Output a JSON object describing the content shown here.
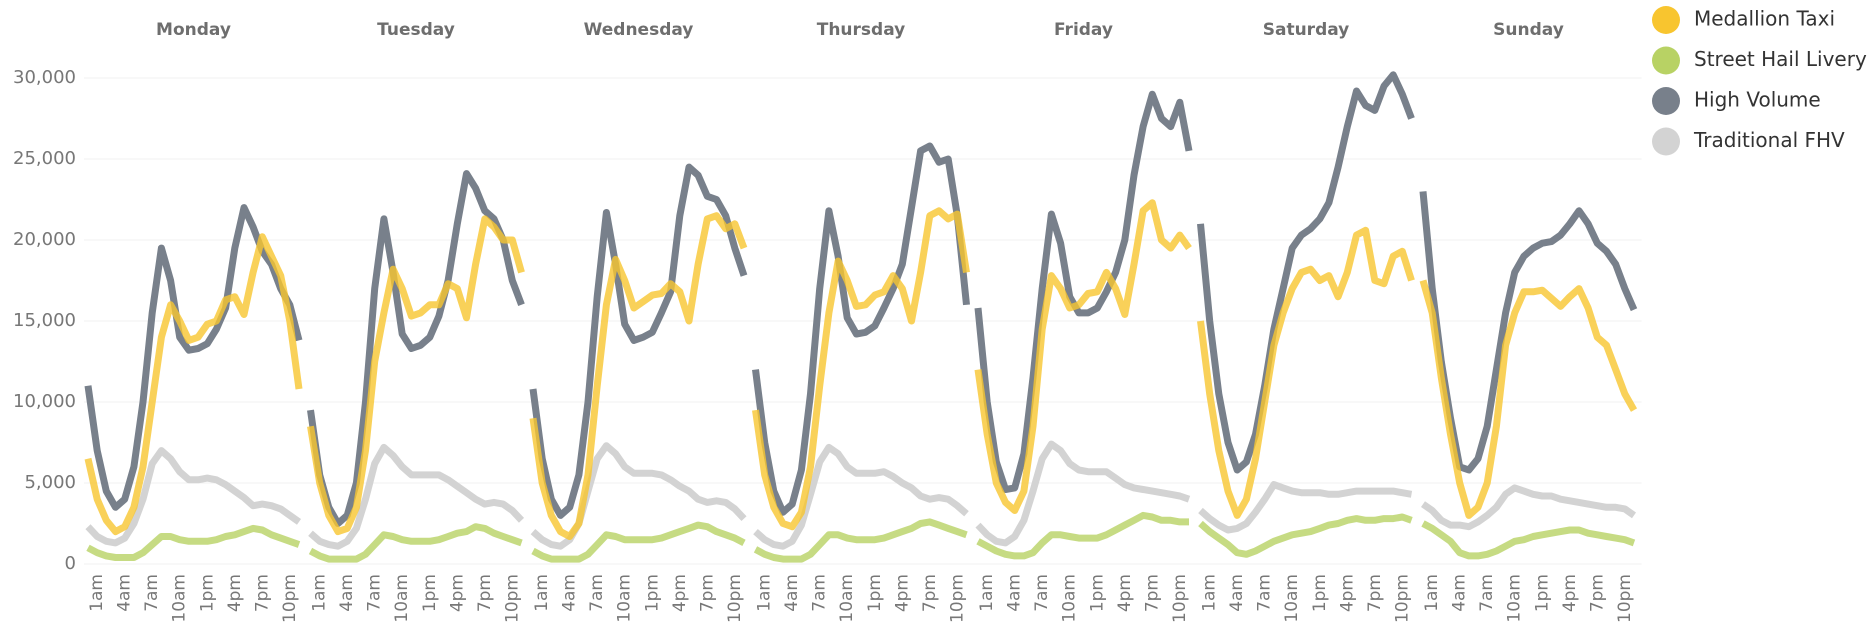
{
  "chart_data": {
    "type": "line",
    "panels": [
      "Monday",
      "Tuesday",
      "Wednesday",
      "Thursday",
      "Friday",
      "Saturday",
      "Sunday"
    ],
    "categories": [
      null,
      "1am",
      null,
      null,
      "4am",
      null,
      null,
      "7am",
      null,
      null,
      "10am",
      null,
      null,
      "1pm",
      null,
      null,
      "4pm",
      null,
      null,
      "7pm",
      null,
      null,
      "10pm",
      null
    ],
    "ylim": [
      0,
      30000
    ],
    "yticks": [
      0,
      {
        "value": 5000,
        "label": "5,000"
      },
      {
        "value": 10000,
        "label": "10,000"
      },
      {
        "value": 15000,
        "label": "15,000"
      },
      {
        "value": 20000,
        "label": "20,000"
      },
      {
        "value": 25000,
        "label": "25,000"
      },
      {
        "value": 30000,
        "label": "30,000"
      }
    ],
    "grid": true,
    "legend": "right",
    "series": [
      {
        "name": "Medallion Taxi",
        "color": "#f8c52f",
        "values": [
          [
            6500,
            4000,
            2700,
            2000,
            2300,
            3500,
            6000,
            10000,
            14000,
            16000,
            15000,
            13800,
            14000,
            14800,
            15000,
            16300,
            16500,
            15400,
            18000,
            20200,
            19000,
            17800,
            15000,
            10800
          ],
          [
            8500,
            5000,
            3000,
            2000,
            2200,
            3500,
            7000,
            12500,
            15500,
            18200,
            17000,
            15300,
            15500,
            16000,
            16000,
            17300,
            17000,
            15200,
            18500,
            21300,
            20800,
            20000,
            20000,
            18000
          ],
          [
            9000,
            5000,
            3000,
            2000,
            1700,
            2500,
            5500,
            11000,
            16000,
            18800,
            17500,
            15800,
            16200,
            16600,
            16700,
            17300,
            16800,
            15000,
            18500,
            21300,
            21500,
            20700,
            21000,
            19500
          ],
          [
            9500,
            5500,
            3500,
            2500,
            2300,
            3200,
            6000,
            11000,
            15500,
            18700,
            17500,
            15900,
            16000,
            16600,
            16800,
            17800,
            17000,
            15000,
            18000,
            21500,
            21800,
            21300,
            21600,
            18000
          ],
          [
            12000,
            8000,
            5000,
            3800,
            3300,
            4500,
            8500,
            14500,
            17800,
            17000,
            15800,
            16000,
            16700,
            16800,
            18000,
            17000,
            15400,
            18500,
            21800,
            22300,
            20000,
            19500,
            20300,
            19500
          ],
          [
            15000,
            10500,
            7000,
            4500,
            3000,
            4000,
            6500,
            10000,
            13500,
            15500,
            17000,
            18000,
            18200,
            17500,
            17800,
            16500,
            18000,
            20300,
            20600,
            17500,
            17300,
            19000,
            19300,
            17500
          ],
          [
            17500,
            15500,
            11500,
            8000,
            5000,
            3000,
            3500,
            5000,
            8500,
            13500,
            15500,
            16800,
            16800,
            16900,
            16400,
            15900,
            16500,
            17000,
            15800,
            14000,
            13500,
            12000,
            10500,
            9500
          ]
        ]
      },
      {
        "name": "Street Hail Livery",
        "color": "#b8d264",
        "values": [
          [
            1000,
            700,
            500,
            400,
            400,
            400,
            700,
            1200,
            1700,
            1700,
            1500,
            1400,
            1400,
            1400,
            1500,
            1700,
            1800,
            2000,
            2200,
            2100,
            1800,
            1600,
            1400,
            1200
          ],
          [
            800,
            500,
            300,
            300,
            300,
            300,
            600,
            1200,
            1800,
            1700,
            1500,
            1400,
            1400,
            1400,
            1500,
            1700,
            1900,
            2000,
            2300,
            2200,
            1900,
            1700,
            1500,
            1300
          ],
          [
            800,
            500,
            300,
            300,
            300,
            300,
            600,
            1200,
            1800,
            1700,
            1500,
            1500,
            1500,
            1500,
            1600,
            1800,
            2000,
            2200,
            2400,
            2300,
            2000,
            1800,
            1600,
            1300
          ],
          [
            900,
            600,
            400,
            300,
            300,
            300,
            600,
            1200,
            1800,
            1800,
            1600,
            1500,
            1500,
            1500,
            1600,
            1800,
            2000,
            2200,
            2500,
            2600,
            2400,
            2200,
            2000,
            1800
          ],
          [
            1400,
            1100,
            800,
            600,
            500,
            500,
            700,
            1300,
            1800,
            1800,
            1700,
            1600,
            1600,
            1600,
            1800,
            2100,
            2400,
            2700,
            3000,
            2900,
            2700,
            2700,
            2600,
            2600
          ],
          [
            2500,
            2000,
            1600,
            1200,
            700,
            600,
            800,
            1100,
            1400,
            1600,
            1800,
            1900,
            2000,
            2200,
            2400,
            2500,
            2700,
            2800,
            2700,
            2700,
            2800,
            2800,
            2900,
            2700
          ],
          [
            2500,
            2200,
            1800,
            1400,
            700,
            500,
            500,
            600,
            800,
            1100,
            1400,
            1500,
            1700,
            1800,
            1900,
            2000,
            2100,
            2100,
            1900,
            1800,
            1700,
            1600,
            1500,
            1300
          ]
        ]
      },
      {
        "name": "High Volume",
        "color": "#78808b",
        "values": [
          [
            11000,
            7000,
            4500,
            3500,
            4000,
            6000,
            10000,
            15500,
            19500,
            17500,
            14000,
            13200,
            13300,
            13600,
            14500,
            15800,
            19500,
            22000,
            20800,
            19300,
            18500,
            17000,
            16000,
            13800
          ],
          [
            9500,
            5500,
            3500,
            2500,
            3000,
            5000,
            10000,
            17000,
            21300,
            18000,
            14200,
            13300,
            13500,
            14000,
            15300,
            17500,
            21000,
            24100,
            23200,
            21800,
            21300,
            20000,
            17500,
            16000
          ],
          [
            10800,
            6500,
            4000,
            3000,
            3500,
            5500,
            10000,
            16500,
            21700,
            18500,
            14800,
            13800,
            14000,
            14300,
            15500,
            16800,
            21500,
            24500,
            24000,
            22700,
            22500,
            21500,
            19500,
            17800
          ],
          [
            12000,
            7500,
            4500,
            3200,
            3700,
            5800,
            10500,
            17000,
            21800,
            19000,
            15200,
            14200,
            14300,
            14700,
            15800,
            17000,
            18500,
            22000,
            25500,
            25800,
            24800,
            25000,
            21500,
            16000
          ],
          [
            15800,
            10000,
            6300,
            4600,
            4700,
            6800,
            11500,
            17000,
            21600,
            19800,
            16500,
            15500,
            15500,
            15800,
            16800,
            18000,
            20000,
            24000,
            27000,
            29000,
            27500,
            27000,
            28500,
            25500
          ],
          [
            21000,
            15000,
            10500,
            7500,
            5800,
            6300,
            8000,
            11000,
            14500,
            17000,
            19500,
            20300,
            20700,
            21300,
            22300,
            24500,
            27000,
            29200,
            28300,
            28000,
            29500,
            30200,
            29000,
            27500
          ],
          [
            23000,
            17000,
            12500,
            9000,
            6000,
            5800,
            6500,
            8500,
            12000,
            15500,
            18000,
            19000,
            19500,
            19800,
            19900,
            20300,
            21000,
            21800,
            21000,
            19800,
            19300,
            18500,
            17000,
            15700
          ]
        ]
      },
      {
        "name": "Traditional FHV",
        "color": "#d3d3d3",
        "values": [
          [
            2300,
            1700,
            1400,
            1300,
            1600,
            2500,
            4000,
            6200,
            7000,
            6500,
            5700,
            5200,
            5200,
            5300,
            5200,
            4900,
            4500,
            4100,
            3600,
            3700,
            3600,
            3400,
            3000,
            2600
          ],
          [
            1900,
            1400,
            1200,
            1100,
            1400,
            2200,
            4000,
            6200,
            7200,
            6700,
            6000,
            5500,
            5500,
            5500,
            5500,
            5200,
            4800,
            4400,
            4000,
            3700,
            3800,
            3700,
            3300,
            2700
          ],
          [
            2000,
            1500,
            1200,
            1100,
            1500,
            2500,
            4500,
            6500,
            7300,
            6800,
            6000,
            5600,
            5600,
            5600,
            5500,
            5200,
            4800,
            4500,
            4000,
            3800,
            3900,
            3800,
            3400,
            2800
          ],
          [
            2000,
            1500,
            1200,
            1100,
            1400,
            2400,
            4300,
            6300,
            7200,
            6800,
            6000,
            5600,
            5600,
            5600,
            5700,
            5400,
            5000,
            4700,
            4200,
            4000,
            4100,
            4000,
            3600,
            3100
          ],
          [
            2400,
            1800,
            1400,
            1300,
            1700,
            2700,
            4500,
            6500,
            7400,
            7000,
            6200,
            5800,
            5700,
            5700,
            5700,
            5300,
            4900,
            4700,
            4600,
            4500,
            4400,
            4300,
            4200,
            4000
          ],
          [
            3300,
            2800,
            2400,
            2100,
            2200,
            2500,
            3200,
            4000,
            4900,
            4700,
            4500,
            4400,
            4400,
            4400,
            4300,
            4300,
            4400,
            4500,
            4500,
            4500,
            4500,
            4500,
            4400,
            4300
          ],
          [
            3700,
            3300,
            2700,
            2400,
            2400,
            2300,
            2600,
            3000,
            3500,
            4300,
            4700,
            4500,
            4300,
            4200,
            4200,
            4000,
            3900,
            3800,
            3700,
            3600,
            3500,
            3500,
            3400,
            3000
          ]
        ]
      }
    ]
  }
}
